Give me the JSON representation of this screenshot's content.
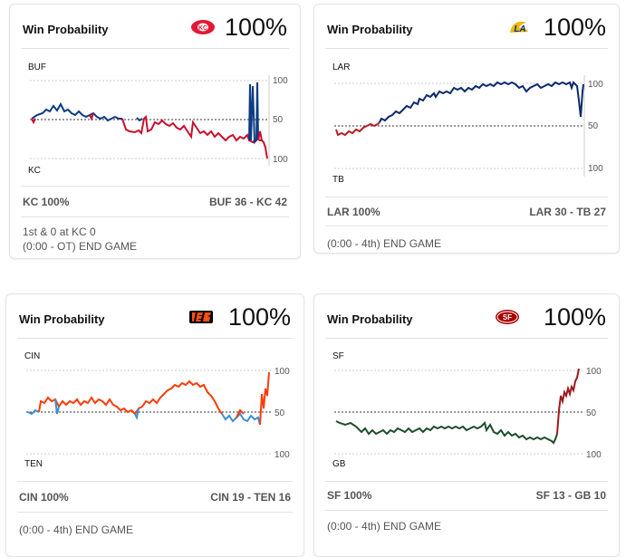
{
  "cards": [
    {
      "title": "Win Probability",
      "percent": "100%",
      "logo": "chiefs-logo",
      "top_team": "BUF",
      "bottom_team": "KC",
      "axis_labels": [
        "100",
        "50",
        "100"
      ],
      "winner_text": "KC 100%",
      "score_text": "BUF 36  - KC 42",
      "status_lines": [
        "1st & 0 at KC 0",
        "(0:00 - OT) END GAME"
      ],
      "colors": {
        "top": "#0d3b84",
        "bottom": "#c8102e"
      }
    },
    {
      "title": "Win Probability",
      "percent": "100%",
      "logo": "rams-logo",
      "top_team": "LAR",
      "bottom_team": "TB",
      "axis_labels": [
        "100",
        "50",
        "100"
      ],
      "winner_text": "LAR 100%",
      "score_text": "LAR 30  - TB 27",
      "status_lines": [
        "(0:00 - 4th) END GAME"
      ],
      "colors": {
        "top": "#0b2a6b",
        "bottom": "#b21f24"
      }
    },
    {
      "title": "Win Probability",
      "percent": "100%",
      "logo": "bengals-logo",
      "top_team": "CIN",
      "bottom_team": "TEN",
      "axis_labels": [
        "100",
        "50",
        "100"
      ],
      "winner_text": "CIN 100%",
      "score_text": "CIN 19  - TEN 16",
      "status_lines": [
        "(0:00 - 4th) END GAME"
      ],
      "colors": {
        "top": "#fb3c08",
        "bottom": "#3a8fd6"
      }
    },
    {
      "title": "Win Probability",
      "percent": "100%",
      "logo": "49ers-logo",
      "top_team": "SF",
      "bottom_team": "GB",
      "axis_labels": [
        "100",
        "50",
        "100"
      ],
      "winner_text": "SF 100%",
      "score_text": "SF 13  - GB 10",
      "status_lines": [
        "(0:00 - 4th) END GAME"
      ],
      "colors": {
        "top": "#9b1b1e",
        "bottom": "#1f4d2b"
      }
    }
  ]
}
